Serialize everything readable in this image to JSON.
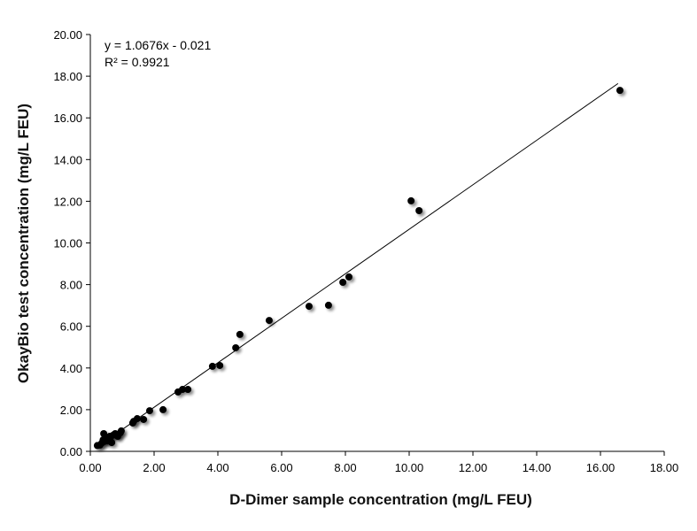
{
  "chart_data": {
    "type": "scatter",
    "title": "",
    "xlabel": "D-Dimer sample concentration (mg/L FEU)",
    "ylabel": "OkayBio test concentration (mg/L FEU)",
    "xlim": [
      0,
      18
    ],
    "ylim": [
      0,
      20
    ],
    "xticks": [
      "0.00",
      "2.00",
      "4.00",
      "6.00",
      "8.00",
      "10.00",
      "12.00",
      "14.00",
      "16.00",
      "18.00"
    ],
    "yticks": [
      "0.00",
      "2.00",
      "4.00",
      "6.00",
      "8.00",
      "10.00",
      "12.00",
      "14.00",
      "16.00",
      "18.00",
      "20.00"
    ],
    "grid": false,
    "point_color": "#000000",
    "trendline": {
      "slope": 1.0676,
      "intercept": -0.021,
      "equation": "y = 1.0676x - 0.021",
      "r2_label": "R² = 0.9921"
    },
    "points": [
      [
        16.61,
        17.32
      ],
      [
        10.06,
        12.02
      ],
      [
        10.31,
        11.55
      ],
      [
        8.11,
        8.37
      ],
      [
        7.92,
        8.11
      ],
      [
        7.47,
        7.01
      ],
      [
        6.86,
        6.96
      ],
      [
        5.61,
        6.28
      ],
      [
        4.69,
        5.61
      ],
      [
        4.56,
        4.97
      ],
      [
        4.06,
        4.12
      ],
      [
        3.83,
        4.08
      ],
      [
        3.06,
        2.97
      ],
      [
        2.89,
        2.97
      ],
      [
        2.75,
        2.85
      ],
      [
        2.28,
        2.0
      ],
      [
        1.86,
        1.95
      ],
      [
        1.67,
        1.53
      ],
      [
        1.47,
        1.57
      ],
      [
        1.36,
        1.44
      ],
      [
        1.33,
        1.36
      ],
      [
        0.97,
        0.98
      ],
      [
        0.94,
        0.89
      ],
      [
        0.86,
        0.72
      ],
      [
        0.78,
        0.85
      ],
      [
        0.72,
        0.78
      ],
      [
        0.61,
        0.72
      ],
      [
        0.67,
        0.42
      ],
      [
        0.5,
        0.6
      ],
      [
        0.42,
        0.85
      ],
      [
        0.45,
        0.48
      ],
      [
        0.36,
        0.4
      ],
      [
        0.3,
        0.3
      ],
      [
        0.22,
        0.28
      ],
      [
        0.4,
        0.55
      ],
      [
        0.55,
        0.5
      ],
      [
        0.85,
        0.8
      ],
      [
        0.62,
        0.65
      ]
    ]
  }
}
